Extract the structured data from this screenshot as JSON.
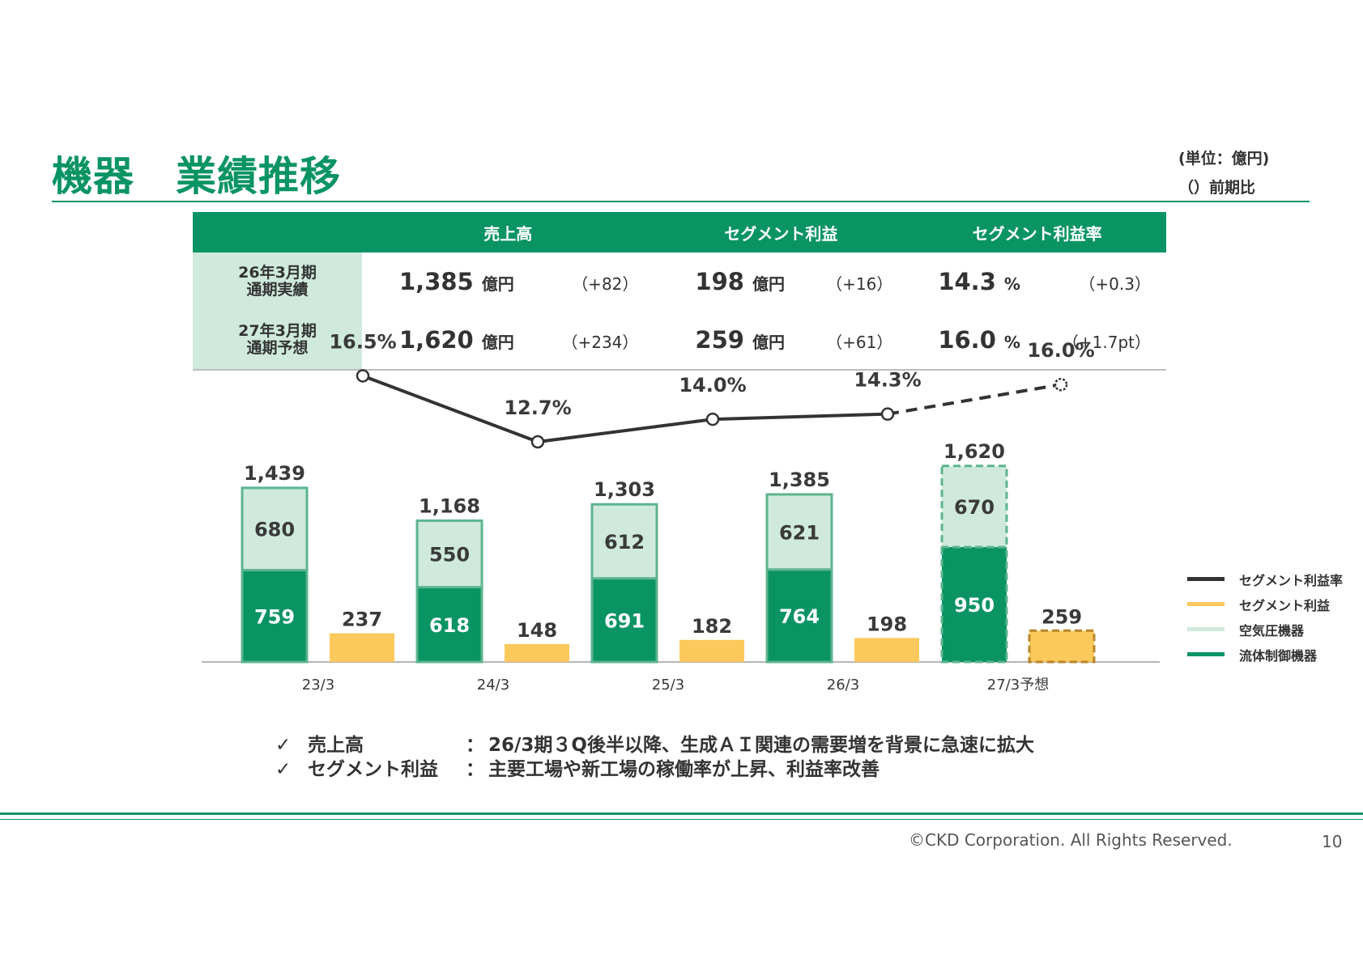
{
  "header": {
    "title": "機器　業績推移",
    "unit_line1": "(単位：億円)",
    "unit_line2": "（）前期比"
  },
  "summary": {
    "col_sales": "売上高",
    "col_profit": "セグメント利益",
    "col_margin": "セグメント利益率",
    "rows": [
      {
        "label1": "26年3月期",
        "label2": "通期実績",
        "sales": "1,385",
        "sales_unit": "億円",
        "sales_chg": "（+82）",
        "profit": "198",
        "profit_unit": "億円",
        "profit_chg": "（+16）",
        "margin": "14.3",
        "margin_unit": "%",
        "margin_chg": "（+0.3）"
      },
      {
        "label1": "27年3月期",
        "label2": "通期予想",
        "sales": "1,620",
        "sales_unit": "億円",
        "sales_chg": "（+234）",
        "profit": "259",
        "profit_unit": "億円",
        "profit_chg": "（+61）",
        "margin": "16.0",
        "margin_unit": "%",
        "margin_chg": "（+1.7pt）"
      }
    ]
  },
  "chart_data": {
    "type": "bar",
    "categories": [
      "23/3",
      "24/3",
      "25/3",
      "26/3",
      "27/3予想"
    ],
    "forecast_index": 4,
    "series": [
      {
        "name": "流体制御機器",
        "kind": "stack",
        "color": "#0a9463",
        "values": [
          759,
          618,
          691,
          764,
          950
        ]
      },
      {
        "name": "空気圧機器",
        "kind": "stack",
        "color": "#cfeadd",
        "values": [
          680,
          550,
          612,
          621,
          670
        ]
      },
      {
        "name": "セグメント利益",
        "kind": "bar",
        "color": "#fbc95c",
        "values": [
          237,
          148,
          182,
          198,
          259
        ]
      },
      {
        "name": "セグメント利益率",
        "kind": "line",
        "color": "#333333",
        "values": [
          16.5,
          12.7,
          14.0,
          14.3,
          16.0
        ]
      }
    ],
    "totals": [
      "1,439",
      "1,168",
      "1,303",
      "1,385",
      "1,620"
    ],
    "stack_labels_top": [
      "680",
      "550",
      "612",
      "621",
      "670"
    ],
    "stack_labels_bottom": [
      "759",
      "618",
      "691",
      "764",
      "950"
    ],
    "profit_labels": [
      "237",
      "148",
      "182",
      "198",
      "259"
    ],
    "margin_labels": [
      "16.5%",
      "12.7%",
      "14.0%",
      "14.3%",
      "16.0%"
    ],
    "legend": {
      "position": "right",
      "order": [
        "セグメント利益率",
        "セグメント利益",
        "空気圧機器",
        "流体制御機器"
      ]
    },
    "grid": false
  },
  "notes": [
    {
      "check": "✓",
      "label": "売上高",
      "colon": "：",
      "text": "26/3期３Q後半以降、生成ＡＩ関連の需要増を背景に急速に拡大"
    },
    {
      "check": "✓",
      "label": "セグメント利益",
      "colon": "：",
      "text": "主要工場や新工場の稼働率が上昇、利益率改善"
    }
  ],
  "footer": {
    "copyright": "©CKD Corporation. All Rights Reserved.",
    "page": "10"
  }
}
